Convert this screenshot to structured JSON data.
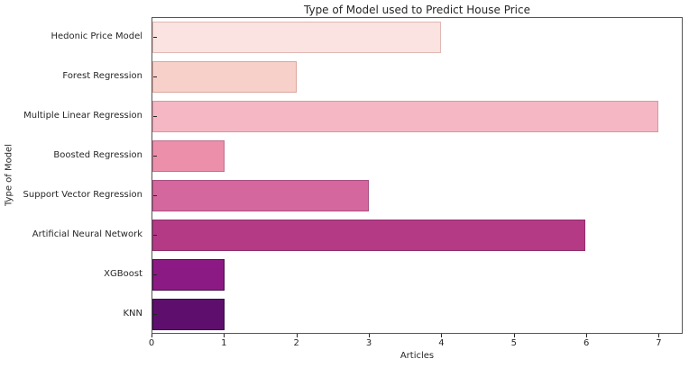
{
  "chart_data": {
    "type": "bar",
    "orientation": "horizontal",
    "title": "Type of Model used to Predict House Price",
    "xlabel": "Articles",
    "ylabel": "Type of Model",
    "categories": [
      "Hedonic Price Model",
      "Forest Regression",
      "Multiple Linear Regression",
      "Boosted Regression",
      "Support Vector Regression",
      "Artificial Neural Network",
      "XGBoost",
      "KNN"
    ],
    "values": [
      4,
      2,
      7,
      1,
      3,
      6,
      1,
      1
    ],
    "bar_colors": [
      "#fae3e0",
      "#f7d0ca",
      "#f4b7c3",
      "#ec8fab",
      "#d4679d",
      "#b43a86",
      "#8c1a84",
      "#5e0f6d"
    ],
    "bar_edge_colors": [
      "#e0b9b4",
      "#dba89e",
      "#d795a5",
      "#c06f90",
      "#a94f80",
      "#8f2e6b",
      "#4a0d4a",
      "#320742"
    ],
    "xlim": [
      0,
      7.33
    ],
    "xticks": [
      0,
      1,
      2,
      3,
      4,
      5,
      6,
      7
    ],
    "grid": false,
    "legend_position": "none",
    "plot_border_color": "#555555",
    "text_color": "#262626",
    "background_color": "#ffffff"
  }
}
